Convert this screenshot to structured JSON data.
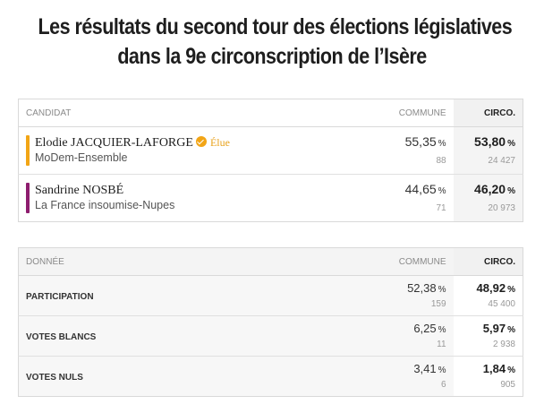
{
  "title": {
    "line1": "Les résultats du second tour des élections législatives",
    "line2": "dans la 9e circonscription de l’Isère"
  },
  "results": {
    "headers": {
      "candidate": "CANDIDAT",
      "commune": "COMMUNE",
      "circo": "CIRCO."
    },
    "candidates": [
      {
        "name": "Elodie JACQUIER-LAFORGE",
        "party": "MoDem-Ensemble",
        "color": "#f2a516",
        "elected": true,
        "elected_label": "Élue",
        "commune_pct": "55,35",
        "commune_votes": "88",
        "circo_pct": "53,80",
        "circo_votes": "24 427"
      },
      {
        "name": "Sandrine NOSBÉ",
        "party": "La France insoumise-Nupes",
        "color": "#8e1d6e",
        "elected": false,
        "elected_label": "",
        "commune_pct": "44,65",
        "commune_votes": "71",
        "circo_pct": "46,20",
        "circo_votes": "20 973"
      }
    ],
    "unit": "%"
  },
  "data": {
    "headers": {
      "label": "DONNÉE",
      "commune": "COMMUNE",
      "circo": "CIRCO."
    },
    "rows": [
      {
        "label": "PARTICIPATION",
        "commune_pct": "52,38",
        "commune_count": "159",
        "circo_pct": "48,92",
        "circo_count": "45 400"
      },
      {
        "label": "VOTES BLANCS",
        "commune_pct": "6,25",
        "commune_count": "11",
        "circo_pct": "5,97",
        "circo_count": "2 938"
      },
      {
        "label": "VOTES NULS",
        "commune_pct": "3,41",
        "commune_count": "6",
        "circo_pct": "1,84",
        "circo_count": "905"
      }
    ],
    "unit": "%"
  }
}
